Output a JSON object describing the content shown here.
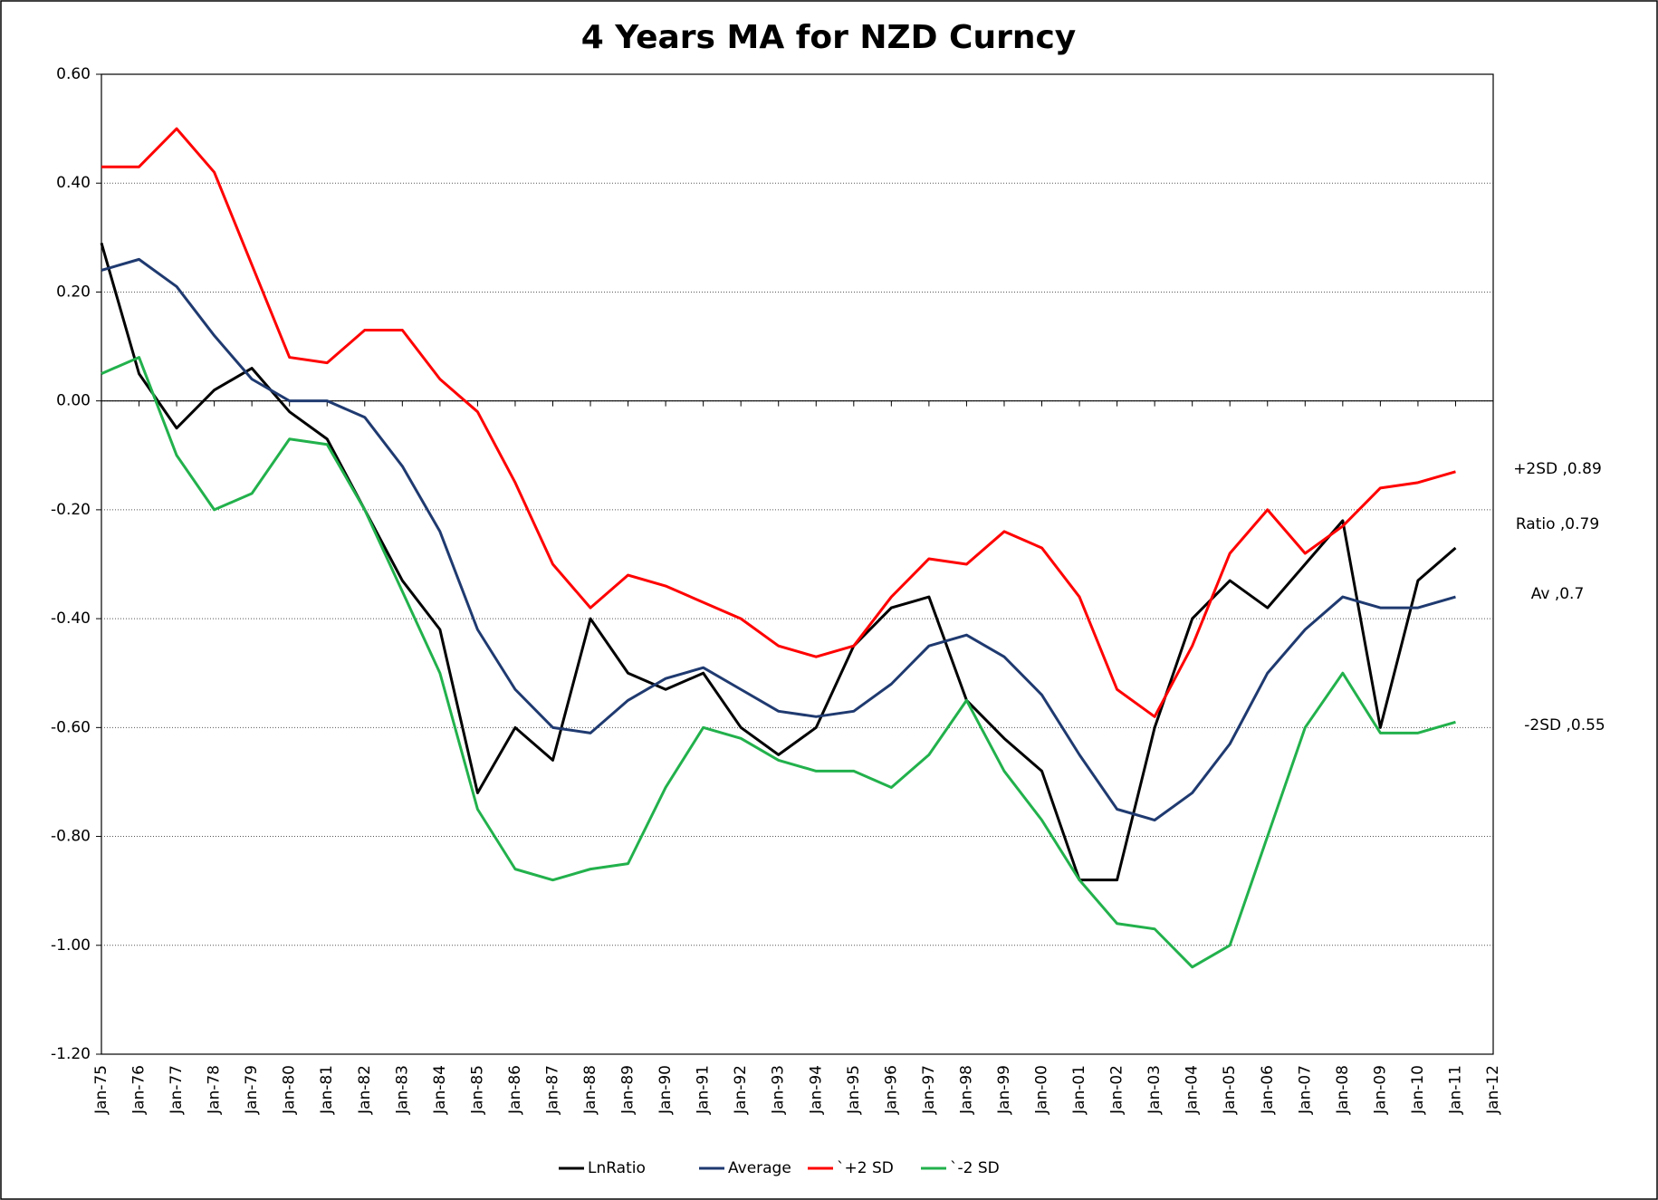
{
  "chart_data": {
    "type": "line",
    "title": "4 Years MA for NZD Curncy",
    "categories": [
      "Jan-75",
      "Jan-76",
      "Jan-77",
      "Jan-78",
      "Jan-79",
      "Jan-80",
      "Jan-81",
      "Jan-82",
      "Jan-83",
      "Jan-84",
      "Jan-85",
      "Jan-86",
      "Jan-87",
      "Jan-88",
      "Jan-89",
      "Jan-90",
      "Jan-91",
      "Jan-92",
      "Jan-93",
      "Jan-94",
      "Jan-95",
      "Jan-96",
      "Jan-97",
      "Jan-98",
      "Jan-99",
      "Jan-00",
      "Jan-01",
      "Jan-02",
      "Jan-03",
      "Jan-04",
      "Jan-05",
      "Jan-06",
      "Jan-07",
      "Jan-08",
      "Jan-09",
      "Jan-10",
      "Jan-11",
      "Jan-12"
    ],
    "series": [
      {
        "name": "LnRatio",
        "color": "#000000",
        "values": [
          0.29,
          0.05,
          -0.05,
          0.02,
          0.06,
          -0.02,
          -0.07,
          -0.2,
          -0.33,
          -0.42,
          -0.72,
          -0.6,
          -0.66,
          -0.4,
          -0.5,
          -0.53,
          -0.5,
          -0.6,
          -0.65,
          -0.6,
          -0.45,
          -0.38,
          -0.36,
          -0.55,
          -0.62,
          -0.68,
          -0.88,
          -0.88,
          -0.6,
          -0.4,
          -0.33,
          -0.38,
          -0.3,
          -0.22,
          -0.6,
          -0.33,
          -0.27,
          null
        ]
      },
      {
        "name": "Average",
        "color": "#1f3a70",
        "values": [
          0.24,
          0.26,
          0.21,
          0.12,
          0.04,
          0.0,
          0.0,
          -0.03,
          -0.12,
          -0.24,
          -0.42,
          -0.53,
          -0.6,
          -0.61,
          -0.55,
          -0.51,
          -0.49,
          -0.53,
          -0.57,
          -0.58,
          -0.57,
          -0.52,
          -0.45,
          -0.43,
          -0.47,
          -0.54,
          -0.65,
          -0.75,
          -0.77,
          -0.72,
          -0.63,
          -0.5,
          -0.42,
          -0.36,
          -0.38,
          -0.38,
          -0.36,
          null
        ]
      },
      {
        "name": "`+2 SD",
        "color": "#ff0000",
        "values": [
          0.43,
          0.43,
          0.5,
          0.42,
          0.25,
          0.08,
          0.07,
          0.13,
          0.13,
          0.04,
          -0.02,
          -0.15,
          -0.3,
          -0.38,
          -0.32,
          -0.34,
          -0.37,
          -0.4,
          -0.45,
          -0.47,
          -0.45,
          -0.36,
          -0.29,
          -0.3,
          -0.24,
          -0.27,
          -0.36,
          -0.53,
          -0.58,
          -0.45,
          -0.28,
          -0.2,
          -0.28,
          -0.23,
          -0.16,
          -0.15,
          -0.13,
          null
        ]
      },
      {
        "name": "`-2 SD",
        "color": "#22b14c",
        "values": [
          0.05,
          0.08,
          -0.1,
          -0.2,
          -0.17,
          -0.07,
          -0.08,
          -0.2,
          -0.35,
          -0.5,
          -0.75,
          -0.86,
          -0.88,
          -0.86,
          -0.85,
          -0.71,
          -0.6,
          -0.62,
          -0.66,
          -0.68,
          -0.68,
          -0.71,
          -0.65,
          -0.55,
          -0.68,
          -0.77,
          -0.88,
          -0.96,
          -0.97,
          -1.04,
          -1.0,
          -0.8,
          -0.6,
          -0.5,
          -0.61,
          -0.61,
          -0.59,
          null
        ]
      }
    ],
    "ylim": [
      -1.2,
      0.6
    ],
    "yticks": [
      {
        "value": -1.2,
        "label": "-1.20"
      },
      {
        "value": -1.0,
        "label": "-1.00"
      },
      {
        "value": -0.8,
        "label": "-0.80"
      },
      {
        "value": -0.6,
        "label": "-0.60"
      },
      {
        "value": -0.4,
        "label": "-0.40"
      },
      {
        "value": -0.2,
        "label": "-0.20"
      },
      {
        "value": 0,
        "label": "0.00"
      },
      {
        "value": 0.2,
        "label": "0.20"
      },
      {
        "value": 0.4,
        "label": "0.40"
      },
      {
        "value": 0.6,
        "label": "0.60"
      }
    ],
    "grid": true,
    "legend": "bottom",
    "annotations": [
      "+2SD ,0.89",
      "Ratio ,0.79",
      "Av ,0.7",
      "-2SD ,0.55"
    ]
  }
}
